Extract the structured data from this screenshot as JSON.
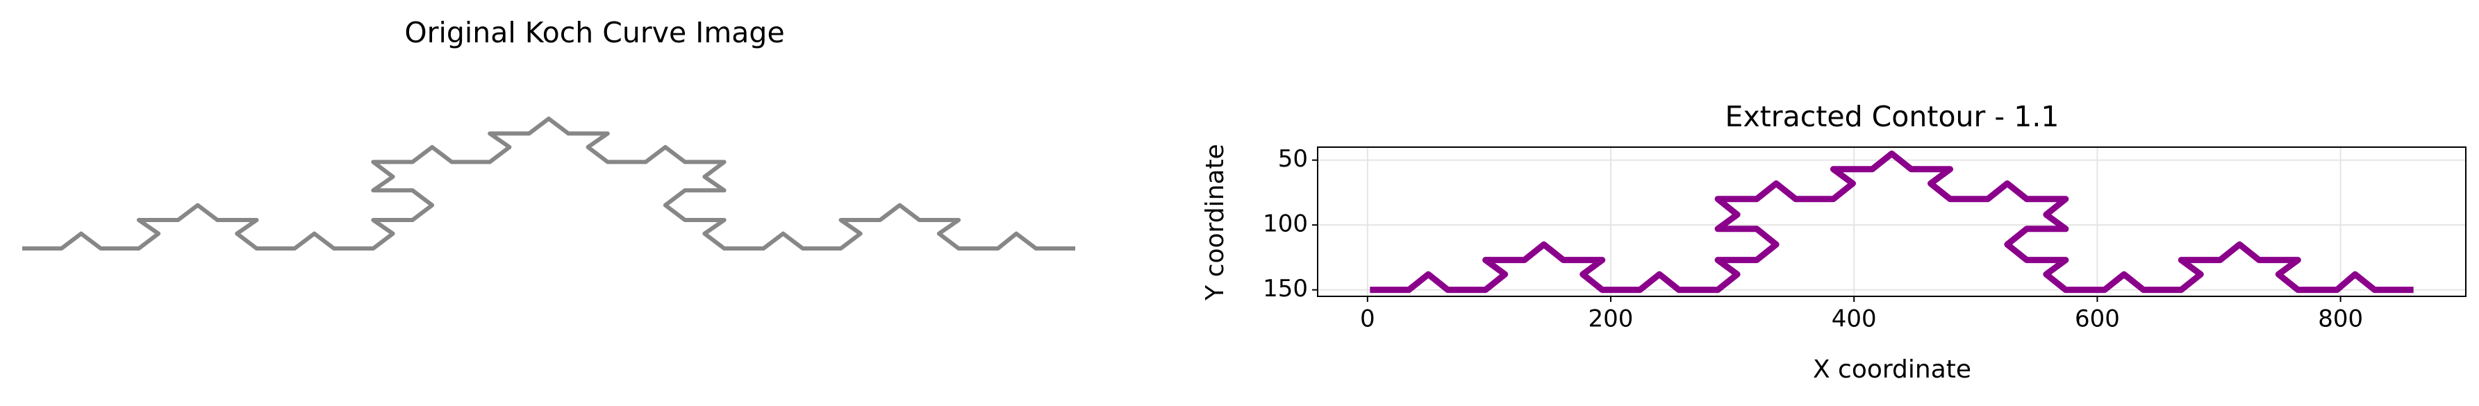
{
  "chart_data": [
    {
      "type": "image",
      "title": "Original Koch Curve Image",
      "color": "#7a7a7a"
    },
    {
      "type": "line",
      "title": "Extracted Contour - 1.1",
      "xlabel": "X coordinate",
      "ylabel": "Y coordinate",
      "xlim": [
        -41,
        903
      ],
      "ylim": [
        155,
        40
      ],
      "xticks": [
        0,
        200,
        400,
        600,
        800
      ],
      "yticks": [
        50,
        100,
        150
      ],
      "grid": true,
      "series": [
        {
          "color": "#8b008b",
          "x": [
            2,
            34,
            50,
            66,
            97,
            113,
            97,
            129,
            145,
            161,
            193,
            177,
            193,
            224,
            240,
            256,
            288,
            304,
            288,
            320,
            336,
            320,
            288,
            304,
            288,
            320,
            336,
            352,
            383,
            399,
            383,
            415,
            431,
            447,
            479,
            463,
            479,
            510,
            526,
            542,
            574,
            558,
            574,
            542,
            526,
            542,
            574,
            558,
            574,
            606,
            622,
            638,
            669,
            685,
            669,
            701,
            717,
            733,
            765,
            749,
            765,
            797,
            812,
            828,
            860
          ],
          "values": [
            150,
            150,
            138,
            150,
            150,
            138,
            127,
            127,
            115,
            127,
            127,
            138,
            150,
            150,
            138,
            150,
            150,
            138,
            127,
            127,
            115,
            103,
            103,
            92,
            80,
            80,
            68,
            80,
            80,
            68,
            57,
            57,
            45,
            57,
            57,
            68,
            80,
            80,
            68,
            80,
            80,
            92,
            103,
            103,
            115,
            127,
            127,
            138,
            150,
            150,
            138,
            150,
            150,
            138,
            127,
            127,
            115,
            127,
            127,
            138,
            150,
            150,
            138,
            150,
            150
          ]
        }
      ]
    }
  ]
}
